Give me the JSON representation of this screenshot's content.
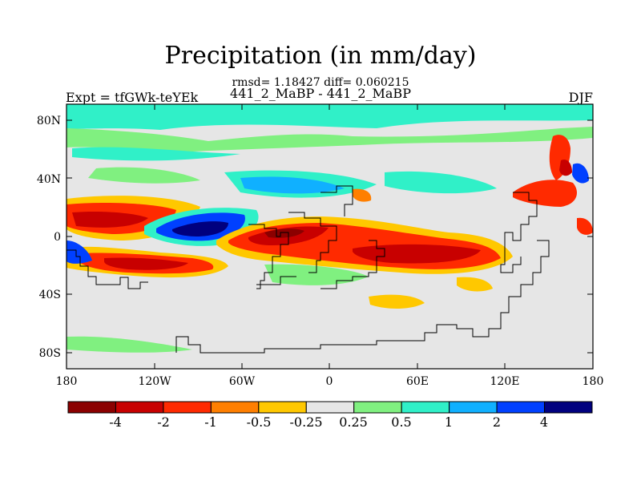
{
  "title": "Precipitation (in mm/day)",
  "stats": "rmsd= 1.18427 diff= 0.060215",
  "subtitle": "441_2_MaBP - 441_2_MaBP",
  "left_label": "Expt = tfGWk-teYEk",
  "right_label": "DJF",
  "lat_ticks": [
    "80N",
    "40N",
    "0",
    "40S",
    "80S"
  ],
  "lon_ticks": [
    "180",
    "120W",
    "60W",
    "0",
    "60E",
    "120E",
    "180"
  ],
  "colorbar": {
    "labels": [
      "-4",
      "-2",
      "-1",
      "-0.5",
      "-0.25",
      "0.25",
      "0.5",
      "1",
      "2",
      "4"
    ],
    "colors": [
      "#8b0000",
      "#c80000",
      "#ff2a00",
      "#ff7f00",
      "#ffc800",
      "#e6e6e6",
      "#80f080",
      "#30f0c8",
      "#10b0ff",
      "#0040ff",
      "#00007f"
    ]
  },
  "map_colors": {
    "background": "#e6e6e6",
    "coast": "#000000"
  }
}
